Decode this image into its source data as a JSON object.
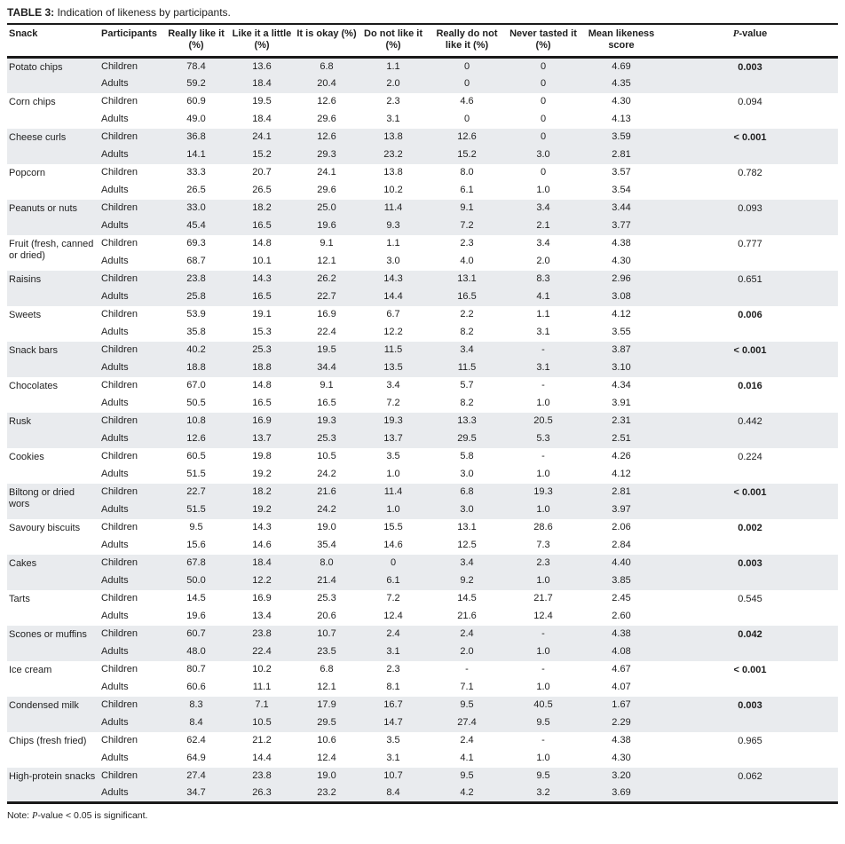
{
  "title": {
    "label": "TABLE 3:",
    "text": "Indication of likeness by participants."
  },
  "colors": {
    "row-shade": "#e9ebee",
    "text": "#1f1f1f",
    "rule": "#1a1a1a"
  },
  "note": {
    "prefix": "Note: ",
    "italic": "P",
    "rest": "-value < 0.05 is significant."
  },
  "table": {
    "columns": [
      "Snack",
      "Participants",
      "Really like it (%)",
      "Like it a little (%)",
      "It is okay (%)",
      "Do not like it (%)",
      "Really do not like it (%)",
      "Never tasted it (%)",
      "Mean likeness score"
    ],
    "p_header": {
      "italic": "P",
      "rest": "-value"
    },
    "participant_types": [
      "Children",
      "Adults"
    ],
    "rows": [
      {
        "snack": "Potato chips",
        "p_value": "0.003",
        "significant": true,
        "children": [
          "78.4",
          "13.6",
          "6.8",
          "1.1",
          "0",
          "0",
          "4.69"
        ],
        "adults": [
          "59.2",
          "18.4",
          "20.4",
          "2.0",
          "0",
          "0",
          "4.35"
        ]
      },
      {
        "snack": "Corn chips",
        "p_value": "0.094",
        "significant": false,
        "children": [
          "60.9",
          "19.5",
          "12.6",
          "2.3",
          "4.6",
          "0",
          "4.30"
        ],
        "adults": [
          "49.0",
          "18.4",
          "29.6",
          "3.1",
          "0",
          "0",
          "4.13"
        ]
      },
      {
        "snack": "Cheese curls",
        "p_value": "< 0.001",
        "significant": true,
        "children": [
          "36.8",
          "24.1",
          "12.6",
          "13.8",
          "12.6",
          "0",
          "3.59"
        ],
        "adults": [
          "14.1",
          "15.2",
          "29.3",
          "23.2",
          "15.2",
          "3.0",
          "2.81"
        ]
      },
      {
        "snack": "Popcorn",
        "p_value": "0.782",
        "significant": false,
        "children": [
          "33.3",
          "20.7",
          "24.1",
          "13.8",
          "8.0",
          "0",
          "3.57"
        ],
        "adults": [
          "26.5",
          "26.5",
          "29.6",
          "10.2",
          "6.1",
          "1.0",
          "3.54"
        ]
      },
      {
        "snack": "Peanuts or nuts",
        "p_value": "0.093",
        "significant": false,
        "children": [
          "33.0",
          "18.2",
          "25.0",
          "11.4",
          "9.1",
          "3.4",
          "3.44"
        ],
        "adults": [
          "45.4",
          "16.5",
          "19.6",
          "9.3",
          "7.2",
          "2.1",
          "3.77"
        ]
      },
      {
        "snack": "Fruit (fresh, canned or dried)",
        "p_value": "0.777",
        "significant": false,
        "children": [
          "69.3",
          "14.8",
          "9.1",
          "1.1",
          "2.3",
          "3.4",
          "4.38"
        ],
        "adults": [
          "68.7",
          "10.1",
          "12.1",
          "3.0",
          "4.0",
          "2.0",
          "4.30"
        ]
      },
      {
        "snack": "Raisins",
        "p_value": "0.651",
        "significant": false,
        "children": [
          "23.8",
          "14.3",
          "26.2",
          "14.3",
          "13.1",
          "8.3",
          "2.96"
        ],
        "adults": [
          "25.8",
          "16.5",
          "22.7",
          "14.4",
          "16.5",
          "4.1",
          "3.08"
        ]
      },
      {
        "snack": "Sweets",
        "p_value": "0.006",
        "significant": true,
        "children": [
          "53.9",
          "19.1",
          "16.9",
          "6.7",
          "2.2",
          "1.1",
          "4.12"
        ],
        "adults": [
          "35.8",
          "15.3",
          "22.4",
          "12.2",
          "8.2",
          "3.1",
          "3.55"
        ]
      },
      {
        "snack": "Snack bars",
        "p_value": "< 0.001",
        "significant": true,
        "children": [
          "40.2",
          "25.3",
          "19.5",
          "11.5",
          "3.4",
          "-",
          "3.87"
        ],
        "adults": [
          "18.8",
          "18.8",
          "34.4",
          "13.5",
          "11.5",
          "3.1",
          "3.10"
        ]
      },
      {
        "snack": "Chocolates",
        "p_value": "0.016",
        "significant": true,
        "children": [
          "67.0",
          "14.8",
          "9.1",
          "3.4",
          "5.7",
          "-",
          "4.34"
        ],
        "adults": [
          "50.5",
          "16.5",
          "16.5",
          "7.2",
          "8.2",
          "1.0",
          "3.91"
        ]
      },
      {
        "snack": "Rusk",
        "p_value": "0.442",
        "significant": false,
        "children": [
          "10.8",
          "16.9",
          "19.3",
          "19.3",
          "13.3",
          "20.5",
          "2.31"
        ],
        "adults": [
          "12.6",
          "13.7",
          "25.3",
          "13.7",
          "29.5",
          "5.3",
          "2.51"
        ]
      },
      {
        "snack": "Cookies",
        "p_value": "0.224",
        "significant": false,
        "children": [
          "60.5",
          "19.8",
          "10.5",
          "3.5",
          "5.8",
          "-",
          "4.26"
        ],
        "adults": [
          "51.5",
          "19.2",
          "24.2",
          "1.0",
          "3.0",
          "1.0",
          "4.12"
        ]
      },
      {
        "snack": "Biltong or dried wors",
        "p_value": "< 0.001",
        "significant": true,
        "children": [
          "22.7",
          "18.2",
          "21.6",
          "11.4",
          "6.8",
          "19.3",
          "2.81"
        ],
        "adults": [
          "51.5",
          "19.2",
          "24.2",
          "1.0",
          "3.0",
          "1.0",
          "3.97"
        ]
      },
      {
        "snack": "Savoury biscuits",
        "p_value": "0.002",
        "significant": true,
        "children": [
          "9.5",
          "14.3",
          "19.0",
          "15.5",
          "13.1",
          "28.6",
          "2.06"
        ],
        "adults": [
          "15.6",
          "14.6",
          "35.4",
          "14.6",
          "12.5",
          "7.3",
          "2.84"
        ]
      },
      {
        "snack": "Cakes",
        "p_value": "0.003",
        "significant": true,
        "children": [
          "67.8",
          "18.4",
          "8.0",
          "0",
          "3.4",
          "2.3",
          "4.40"
        ],
        "adults": [
          "50.0",
          "12.2",
          "21.4",
          "6.1",
          "9.2",
          "1.0",
          "3.85"
        ]
      },
      {
        "snack": "Tarts",
        "p_value": "0.545",
        "significant": false,
        "children": [
          "14.5",
          "16.9",
          "25.3",
          "7.2",
          "14.5",
          "21.7",
          "2.45"
        ],
        "adults": [
          "19.6",
          "13.4",
          "20.6",
          "12.4",
          "21.6",
          "12.4",
          "2.60"
        ]
      },
      {
        "snack": "Scones or muffins",
        "p_value": "0.042",
        "significant": true,
        "children": [
          "60.7",
          "23.8",
          "10.7",
          "2.4",
          "2.4",
          "-",
          "4.38"
        ],
        "adults": [
          "48.0",
          "22.4",
          "23.5",
          "3.1",
          "2.0",
          "1.0",
          "4.08"
        ]
      },
      {
        "snack": "Ice cream",
        "p_value": "< 0.001",
        "significant": true,
        "children": [
          "80.7",
          "10.2",
          "6.8",
          "2.3",
          "-",
          "-",
          "4.67"
        ],
        "adults": [
          "60.6",
          "11.1",
          "12.1",
          "8.1",
          "7.1",
          "1.0",
          "4.07"
        ]
      },
      {
        "snack": "Condensed milk",
        "p_value": "0.003",
        "significant": true,
        "children": [
          "8.3",
          "7.1",
          "17.9",
          "16.7",
          "9.5",
          "40.5",
          "1.67"
        ],
        "adults": [
          "8.4",
          "10.5",
          "29.5",
          "14.7",
          "27.4",
          "9.5",
          "2.29"
        ]
      },
      {
        "snack": "Chips (fresh fried)",
        "p_value": "0.965",
        "significant": false,
        "children": [
          "62.4",
          "21.2",
          "10.6",
          "3.5",
          "2.4",
          "-",
          "4.38"
        ],
        "adults": [
          "64.9",
          "14.4",
          "12.4",
          "3.1",
          "4.1",
          "1.0",
          "4.30"
        ]
      },
      {
        "snack": "High-protein snacks",
        "p_value": "0.062",
        "significant": false,
        "children": [
          "27.4",
          "23.8",
          "19.0",
          "10.7",
          "9.5",
          "9.5",
          "3.20"
        ],
        "adults": [
          "34.7",
          "26.3",
          "23.2",
          "8.4",
          "4.2",
          "3.2",
          "3.69"
        ]
      }
    ]
  }
}
